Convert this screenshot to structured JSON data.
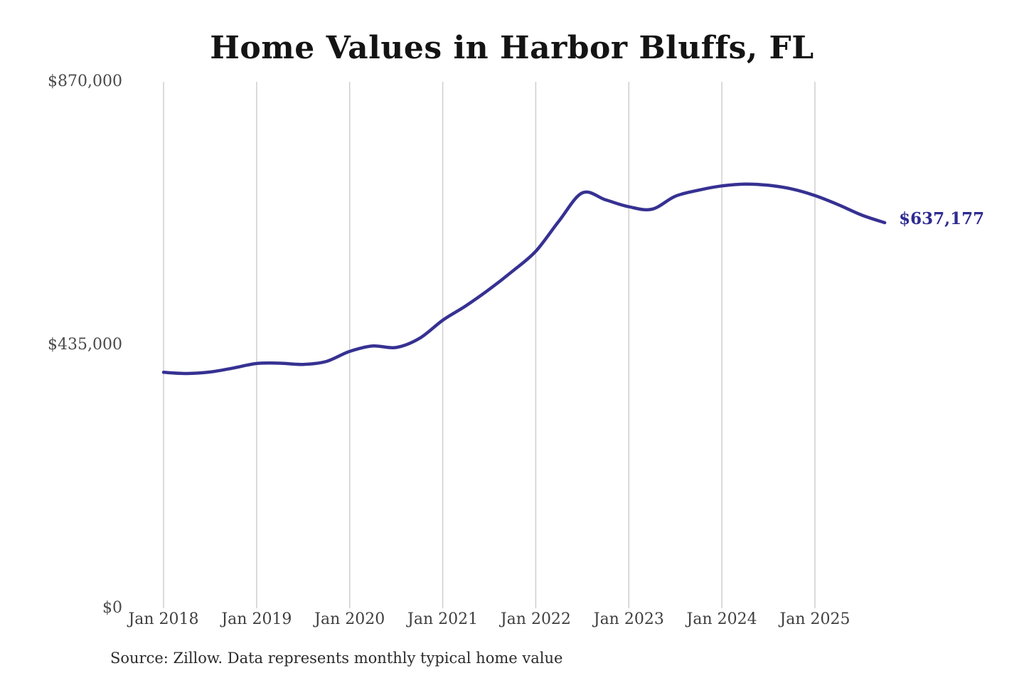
{
  "chart_data": {
    "type": "line",
    "title": "Home Values in Harbor Bluffs, FL",
    "source_note": "Source: Zillow. Data represents monthly typical home value",
    "latest_value_label": "$637,177",
    "latest_value": 637177,
    "ylim": [
      0,
      870000
    ],
    "grid": "vertical-only",
    "legend": "none",
    "y_ticks": [
      {
        "label": "$0",
        "value": 0
      },
      {
        "label": "$435,000",
        "value": 435000
      },
      {
        "label": "$870,000",
        "value": 870000
      }
    ],
    "x_ticks": [
      "Jan 2018",
      "Jan 2019",
      "Jan 2020",
      "Jan 2021",
      "Jan 2022",
      "Jan 2023",
      "Jan 2024",
      "Jan 2025"
    ],
    "series": [
      {
        "name": "Monthly typical home value",
        "points": [
          [
            "2018-01",
            390000
          ],
          [
            "2018-04",
            388000
          ],
          [
            "2018-07",
            390500
          ],
          [
            "2018-10",
            397000
          ],
          [
            "2019-01",
            404500
          ],
          [
            "2019-04",
            405000
          ],
          [
            "2019-07",
            403000
          ],
          [
            "2019-10",
            408000
          ],
          [
            "2020-01",
            424500
          ],
          [
            "2020-04",
            433500
          ],
          [
            "2020-07",
            431000
          ],
          [
            "2020-10",
            446000
          ],
          [
            "2021-01",
            476000
          ],
          [
            "2021-04",
            500000
          ],
          [
            "2021-07",
            527000
          ],
          [
            "2021-10",
            557000
          ],
          [
            "2022-01",
            590000
          ],
          [
            "2022-04",
            640000
          ],
          [
            "2022-07",
            686500
          ],
          [
            "2022-10",
            675000
          ],
          [
            "2023-01",
            663500
          ],
          [
            "2023-04",
            659500
          ],
          [
            "2023-07",
            681000
          ],
          [
            "2023-10",
            691000
          ],
          [
            "2024-01",
            698000
          ],
          [
            "2024-04",
            701000
          ],
          [
            "2024-07",
            699000
          ],
          [
            "2024-10",
            693000
          ],
          [
            "2025-01",
            682000
          ],
          [
            "2025-04",
            667000
          ],
          [
            "2025-07",
            650000
          ],
          [
            "2025-10",
            637177
          ]
        ]
      }
    ],
    "colors": {
      "line": "#363192",
      "annotation": "#2e2b91",
      "gridline": "#cccccc",
      "axis_text": "#4a4a4a",
      "title_text": "#141414",
      "background": "#ffffff"
    }
  }
}
